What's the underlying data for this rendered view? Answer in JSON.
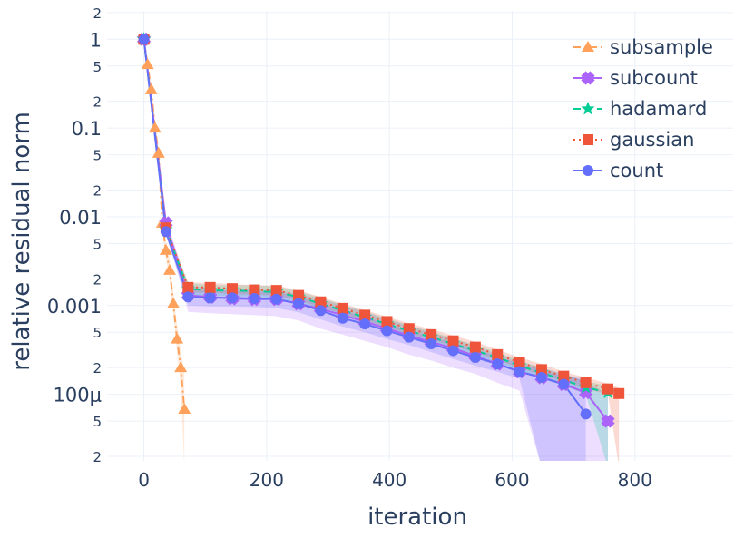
{
  "chart_data": {
    "type": "line",
    "xlabel": "iteration",
    "ylabel": "relative residual norm",
    "y_scale": "log",
    "xlim": [
      -60,
      960
    ],
    "ylim_log10": [
      -4.75,
      0.32
    ],
    "grid": true,
    "legend_position": "top-right",
    "x_ticks": [
      {
        "value": 0,
        "label": "0"
      },
      {
        "value": 200,
        "label": "200"
      },
      {
        "value": 400,
        "label": "400"
      },
      {
        "value": 600,
        "label": "600"
      },
      {
        "value": 800,
        "label": "800"
      }
    ],
    "y_major_ticks": [
      {
        "value": 1,
        "label": "1"
      },
      {
        "value": 0.1,
        "label": "0.1"
      },
      {
        "value": 0.01,
        "label": "0.01"
      },
      {
        "value": 0.001,
        "label": "0.001"
      },
      {
        "value": 0.0001,
        "label": "100μ"
      }
    ],
    "y_minor_ticks": [
      {
        "value": 2,
        "label": "2"
      },
      {
        "value": 0.5,
        "label": "5"
      },
      {
        "value": 0.2,
        "label": "2"
      },
      {
        "value": 0.05,
        "label": "5"
      },
      {
        "value": 0.02,
        "label": "2"
      },
      {
        "value": 0.005,
        "label": "5"
      },
      {
        "value": 0.002,
        "label": "2"
      },
      {
        "value": 0.0005,
        "label": "5"
      },
      {
        "value": 0.0002,
        "label": "2"
      },
      {
        "value": 5e-05,
        "label": "5"
      },
      {
        "value": 2e-05,
        "label": "2"
      }
    ],
    "series": [
      {
        "name": "subsample",
        "color": "#FFA15A",
        "dash": "8,4,2,4",
        "symbol": "triangle-up",
        "x": [
          0,
          6,
          12,
          18,
          24,
          30,
          36,
          42,
          48,
          54,
          60,
          66
        ],
        "y": [
          1,
          0.52,
          0.27,
          0.1,
          0.052,
          0.0085,
          0.0042,
          0.0025,
          0.00105,
          0.00042,
          0.0002,
          6.8e-05
        ],
        "band_upper": [
          1,
          0.55,
          0.3,
          0.12,
          0.06,
          0.012,
          0.0055,
          0.0033,
          0.0014,
          0.0006,
          0.00032,
          0.00018
        ],
        "band_lower": [
          1,
          0.48,
          0.24,
          0.085,
          0.044,
          0.007,
          0.0034,
          0.002,
          0.0008,
          0.0003,
          0.00012,
          1.5e-05
        ]
      },
      {
        "name": "subcount",
        "color": "#AB63FA",
        "dash": "none",
        "symbol": "x",
        "x": [
          0,
          36,
          72,
          108,
          144,
          180,
          216,
          252,
          288,
          324,
          360,
          396,
          432,
          468,
          504,
          540,
          576,
          612,
          648,
          684,
          720,
          756
        ],
        "y": [
          1,
          0.0085,
          0.0013,
          0.00125,
          0.0012,
          0.00118,
          0.00118,
          0.00105,
          0.00092,
          0.00078,
          0.00066,
          0.00055,
          0.00046,
          0.00039,
          0.00033,
          0.00027,
          0.00022,
          0.00018,
          0.000155,
          0.00013,
          0.000105,
          5e-05
        ],
        "band_upper": [
          1,
          0.0095,
          0.00165,
          0.0016,
          0.00155,
          0.0015,
          0.0015,
          0.00135,
          0.00118,
          0.001,
          0.00085,
          0.0007,
          0.00059,
          0.0005,
          0.00042,
          0.00035,
          0.00028,
          0.00023,
          0.0002,
          0.00017,
          0.00014,
          0.0001
        ],
        "band_lower": [
          1,
          0.0075,
          0.00085,
          0.00082,
          0.0008,
          0.00078,
          0.00076,
          0.00068,
          0.00055,
          0.00047,
          0.0004,
          0.00034,
          0.00028,
          0.00024,
          0.0002,
          0.00017,
          0.000135,
          0.00011,
          1.5e-05,
          1.5e-05,
          1.5e-05,
          1.5e-05
        ]
      },
      {
        "name": "hadamard",
        "color": "#00CC96",
        "dash": "8,5",
        "symbol": "star",
        "x": [
          0,
          36,
          72,
          108,
          144,
          180,
          216,
          252,
          288,
          324,
          360,
          396,
          432,
          468,
          504,
          540,
          576,
          612,
          648,
          684,
          720,
          756
        ],
        "y": [
          1,
          0.0072,
          0.00155,
          0.00148,
          0.00148,
          0.00145,
          0.00142,
          0.00125,
          0.00105,
          0.00088,
          0.00074,
          0.00062,
          0.00052,
          0.00044,
          0.00037,
          0.00031,
          0.00026,
          0.00021,
          0.000175,
          0.000145,
          0.00012,
          0.000105
        ],
        "band_upper": [
          1,
          0.008,
          0.0018,
          0.0017,
          0.0017,
          0.0017,
          0.00165,
          0.00145,
          0.00122,
          0.00102,
          0.00086,
          0.00072,
          0.0006,
          0.00051,
          0.00043,
          0.00036,
          0.0003,
          0.00024,
          0.0002,
          0.00017,
          0.00014,
          0.000125
        ],
        "band_lower": [
          1,
          0.0064,
          0.00132,
          0.00128,
          0.00128,
          0.00125,
          0.00122,
          0.00108,
          0.0009,
          0.00076,
          0.00064,
          0.00054,
          0.00045,
          0.00038,
          0.00032,
          0.00027,
          0.000225,
          0.00018,
          0.00015,
          0.000125,
          0.0001,
          1.5e-05
        ]
      },
      {
        "name": "gaussian",
        "color": "#EF553B",
        "dash": "2,4",
        "symbol": "square",
        "x": [
          0,
          36,
          72,
          108,
          144,
          180,
          216,
          252,
          288,
          324,
          360,
          396,
          432,
          468,
          504,
          540,
          576,
          612,
          648,
          684,
          720,
          756,
          774
        ],
        "y": [
          1,
          0.0075,
          0.0016,
          0.0016,
          0.00155,
          0.0015,
          0.00148,
          0.0013,
          0.0011,
          0.00093,
          0.00078,
          0.00066,
          0.00055,
          0.00047,
          0.0004,
          0.00034,
          0.00028,
          0.00023,
          0.00019,
          0.00016,
          0.000135,
          0.000115,
          0.000102
        ],
        "band_upper": [
          1,
          0.0082,
          0.00182,
          0.0018,
          0.00175,
          0.0017,
          0.00168,
          0.00148,
          0.00125,
          0.00105,
          0.00089,
          0.00075,
          0.00063,
          0.00054,
          0.00046,
          0.00039,
          0.00032,
          0.00026,
          0.00022,
          0.00018,
          0.000155,
          0.000132,
          0.000118
        ],
        "band_lower": [
          1,
          0.0068,
          0.0014,
          0.0014,
          0.00135,
          0.00132,
          0.0013,
          0.00114,
          0.00096,
          0.00081,
          0.00068,
          0.00057,
          0.00048,
          0.00041,
          0.00035,
          0.0003,
          0.00024,
          0.0002,
          0.000165,
          0.00014,
          0.000115,
          0.0001,
          1.5e-05
        ]
      },
      {
        "name": "count",
        "color": "#636EFA",
        "dash": "none",
        "symbol": "circle",
        "x": [
          0,
          36,
          72,
          108,
          144,
          180,
          216,
          252,
          288,
          324,
          360,
          396,
          432,
          468,
          504,
          540,
          576,
          612,
          648,
          684,
          720
        ],
        "y": [
          1,
          0.0068,
          0.00125,
          0.00122,
          0.00122,
          0.0012,
          0.00118,
          0.00105,
          0.00088,
          0.00072,
          0.00062,
          0.00052,
          0.00044,
          0.00037,
          0.00031,
          0.00026,
          0.00022,
          0.00018,
          0.000155,
          0.00013,
          6e-05
        ],
        "band_upper": [
          1,
          0.0075,
          0.0015,
          0.00148,
          0.00148,
          0.00145,
          0.00142,
          0.00126,
          0.00106,
          0.00088,
          0.00075,
          0.00063,
          0.00053,
          0.00045,
          0.00038,
          0.00032,
          0.00027,
          0.00022,
          0.00019,
          0.00016,
          0.00015
        ],
        "band_lower": [
          1,
          0.0062,
          0.001,
          0.00098,
          0.00098,
          0.00096,
          0.00094,
          0.00084,
          0.0007,
          0.00058,
          0.0005,
          0.00042,
          0.00036,
          0.0003,
          0.00025,
          0.00021,
          0.00018,
          0.00015,
          1.5e-05,
          1.5e-05,
          1.5e-05
        ]
      }
    ]
  }
}
